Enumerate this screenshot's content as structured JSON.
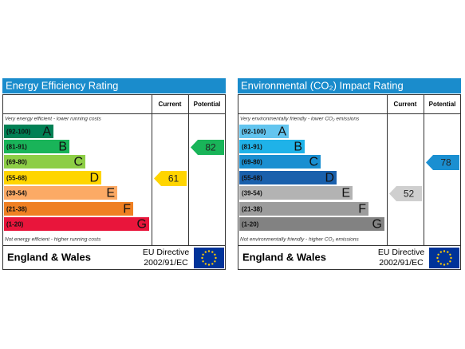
{
  "panels": [
    {
      "title": "Energy Efficiency Rating",
      "headers": {
        "current": "Current",
        "potential": "Potential"
      },
      "top_note": "Very energy efficient - lower running costs",
      "bottom_note": "Not energy efficient - higher running costs",
      "bands": [
        {
          "range": "(92-100)",
          "letter": "A",
          "color": "#008054"
        },
        {
          "range": "(81-91)",
          "letter": "B",
          "color": "#19b459"
        },
        {
          "range": "(69-80)",
          "letter": "C",
          "color": "#8dce46"
        },
        {
          "range": "(55-68)",
          "letter": "D",
          "color": "#ffd500"
        },
        {
          "range": "(39-54)",
          "letter": "E",
          "color": "#fcaa65"
        },
        {
          "range": "(21-38)",
          "letter": "F",
          "color": "#ef8023"
        },
        {
          "range": "(1-20)",
          "letter": "G",
          "color": "#e9153b"
        }
      ],
      "current": 61,
      "potential": 82,
      "footer": {
        "region": "England & Wales",
        "directive": "EU Directive",
        "code": "2002/91/EC"
      }
    },
    {
      "title": "Environmental (CO₂) Impact Rating",
      "headers": {
        "current": "Current",
        "potential": "Potential"
      },
      "top_note": "Very environmentally friendly - lower CO₂ emissions",
      "bottom_note": "Not environmentally friendly - higher CO₂ emissions",
      "bands": [
        {
          "range": "(92-100)",
          "letter": "A",
          "color": "#63c5ef"
        },
        {
          "range": "(81-91)",
          "letter": "B",
          "color": "#1fb2e8"
        },
        {
          "range": "(69-80)",
          "letter": "C",
          "color": "#1a8fd1"
        },
        {
          "range": "(55-68)",
          "letter": "D",
          "color": "#1a60ac"
        },
        {
          "range": "(39-54)",
          "letter": "E",
          "color": "#b3b3b3"
        },
        {
          "range": "(21-38)",
          "letter": "F",
          "color": "#9c9c9c"
        },
        {
          "range": "(1-20)",
          "letter": "G",
          "color": "#828282"
        }
      ],
      "current": 52,
      "potential": 78,
      "footer": {
        "region": "England & Wales",
        "directive": "EU Directive",
        "code": "2002/91/EC"
      }
    }
  ]
}
